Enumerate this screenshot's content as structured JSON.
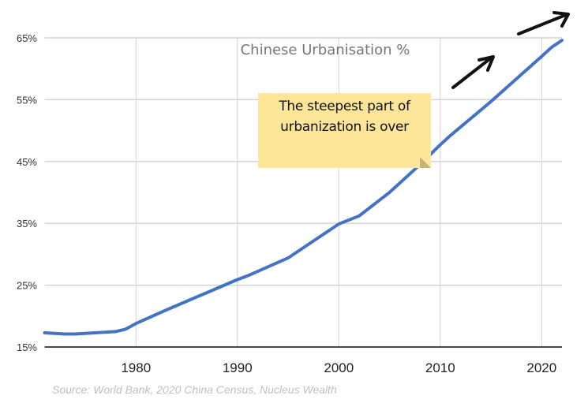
{
  "chart_data": {
    "type": "line",
    "title": "Chinese Urbanisation %",
    "xlabel": "",
    "ylabel": "",
    "xlim": [
      1971,
      2022
    ],
    "ylim": [
      15,
      65
    ],
    "x_ticks": [
      1980,
      1990,
      2000,
      2010,
      2020
    ],
    "x_tick_labels": [
      "1980",
      "1990",
      "2000",
      "2010",
      "2020"
    ],
    "y_ticks": [
      15,
      25,
      35,
      45,
      55,
      65
    ],
    "y_tick_labels": [
      "15%",
      "25%",
      "35%",
      "45%",
      "55%",
      "65%"
    ],
    "grid": true,
    "series": [
      {
        "color": "#4472c4",
        "x": [
          1971,
          1972,
          1973,
          1974,
          1975,
          1976,
          1977,
          1978,
          1979,
          1980,
          1983,
          1985,
          1990,
          1991,
          1995,
          2000,
          2002,
          2005,
          2008,
          2010,
          2011,
          2015,
          2020,
          2021,
          2022
        ],
        "values": [
          17.3,
          17.2,
          17.1,
          17.1,
          17.2,
          17.3,
          17.4,
          17.5,
          17.9,
          18.8,
          21.0,
          22.4,
          25.9,
          26.5,
          29.4,
          34.9,
          36.2,
          40.0,
          44.5,
          47.7,
          49.2,
          54.7,
          62.0,
          63.5,
          64.6
        ]
      }
    ],
    "annotation": "The steepest part of urbanization is over",
    "source": "Source: World Bank, 2020 China Census, Nucleus Wealth"
  },
  "colors": {
    "line": "#4472c4",
    "note": "#fde59a",
    "grid": "#d3d3d3"
  },
  "icons": [
    "hand-drawn-arrow-up-right",
    "hand-drawn-arrow-up-right"
  ]
}
